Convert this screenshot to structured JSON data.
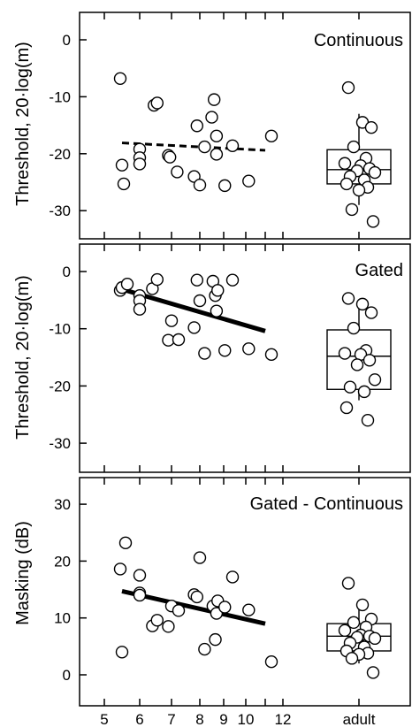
{
  "chart_data": [
    {
      "type": "scatter",
      "title": "Continuous",
      "ylabel": "Threshold, 20·log(m)",
      "ylim": [
        -35,
        5
      ],
      "yticks": [
        0,
        -10,
        -20,
        -30
      ],
      "x_ticks": [
        5,
        6,
        7,
        8,
        9,
        10,
        12
      ],
      "x_ticks_extra": [
        11
      ],
      "x_category": "adult",
      "children": [
        {
          "x": 5.45,
          "y": -6.8
        },
        {
          "x": 5.5,
          "y": -22.0
        },
        {
          "x": 5.55,
          "y": -25.3
        },
        {
          "x": 6.0,
          "y": -19.2
        },
        {
          "x": 6.0,
          "y": -20.7
        },
        {
          "x": 6.0,
          "y": -21.8
        },
        {
          "x": 6.45,
          "y": -11.5
        },
        {
          "x": 6.55,
          "y": -11.1
        },
        {
          "x": 6.9,
          "y": -20.3
        },
        {
          "x": 6.95,
          "y": -20.6
        },
        {
          "x": 7.2,
          "y": -23.2
        },
        {
          "x": 7.8,
          "y": -24.0
        },
        {
          "x": 7.9,
          "y": -15.1
        },
        {
          "x": 8.0,
          "y": -25.5
        },
        {
          "x": 8.2,
          "y": -18.8
        },
        {
          "x": 8.5,
          "y": -13.6
        },
        {
          "x": 8.6,
          "y": -10.5
        },
        {
          "x": 8.7,
          "y": -16.9
        },
        {
          "x": 8.7,
          "y": -20.1
        },
        {
          "x": 9.05,
          "y": -25.6
        },
        {
          "x": 9.4,
          "y": -18.6
        },
        {
          "x": 10.15,
          "y": -24.8
        },
        {
          "x": 11.35,
          "y": -16.9
        }
      ],
      "fit_line": {
        "style": "dashed",
        "from": {
          "x": 5.5,
          "y": -18.1
        },
        "to": {
          "x": 11.0,
          "y": -19.4
        }
      },
      "adult": {
        "points": [
          -8.4,
          -14.5,
          -15.4,
          -18.8,
          -20.8,
          -21.7,
          -22.1,
          -22.6,
          -23.0,
          -23.3,
          -24.0,
          -24.6,
          -25.3,
          -25.9,
          -26.4,
          -29.8,
          -31.9
        ],
        "box": {
          "q1": -25.3,
          "median": -22.8,
          "q3": -19.3,
          "whisker_low": -29.0,
          "whisker_high": -13.0
        }
      }
    },
    {
      "type": "scatter",
      "title": "Gated",
      "ylabel": "Threshold, 20·log(m)",
      "ylim": [
        -35,
        5
      ],
      "yticks": [
        0,
        -10,
        -20,
        -30
      ],
      "x_ticks": [
        5,
        6,
        7,
        8,
        9,
        10,
        12
      ],
      "x_ticks_extra": [
        11
      ],
      "x_category": "adult",
      "children": [
        {
          "x": 5.45,
          "y": -3.3
        },
        {
          "x": 5.5,
          "y": -2.8
        },
        {
          "x": 5.65,
          "y": -2.2
        },
        {
          "x": 6.0,
          "y": -4.2
        },
        {
          "x": 6.0,
          "y": -5.1
        },
        {
          "x": 6.0,
          "y": -6.6
        },
        {
          "x": 6.4,
          "y": -3.0
        },
        {
          "x": 6.55,
          "y": -1.4
        },
        {
          "x": 6.9,
          "y": -12.0
        },
        {
          "x": 7.0,
          "y": -8.6
        },
        {
          "x": 7.25,
          "y": -11.9
        },
        {
          "x": 7.8,
          "y": -9.8
        },
        {
          "x": 7.9,
          "y": -1.5
        },
        {
          "x": 8.0,
          "y": -5.1
        },
        {
          "x": 8.2,
          "y": -14.3
        },
        {
          "x": 8.55,
          "y": -1.7
        },
        {
          "x": 8.65,
          "y": -4.2
        },
        {
          "x": 8.7,
          "y": -6.9
        },
        {
          "x": 8.75,
          "y": -3.3
        },
        {
          "x": 9.05,
          "y": -13.8
        },
        {
          "x": 9.4,
          "y": -1.5
        },
        {
          "x": 10.15,
          "y": -13.5
        },
        {
          "x": 11.35,
          "y": -14.5
        }
      ],
      "fit_line": {
        "style": "solid",
        "from": {
          "x": 5.5,
          "y": -3.1
        },
        "to": {
          "x": 11.0,
          "y": -10.4
        }
      },
      "adult": {
        "points": [
          -4.7,
          -5.7,
          -7.2,
          -9.9,
          -13.8,
          -14.3,
          -14.5,
          -15.5,
          -16.3,
          -18.9,
          -20.2,
          -21.0,
          -23.8,
          -26.0
        ],
        "box": {
          "q1": -20.6,
          "median": -14.8,
          "q3": -10.2,
          "whisker_low": -22.5,
          "whisker_high": -5.0
        }
      }
    },
    {
      "type": "scatter",
      "title": "Gated - Continuous",
      "ylabel": "Masking (dB)",
      "ylim": [
        -5,
        35
      ],
      "yticks": [
        30,
        20,
        10,
        0
      ],
      "x_ticks": [
        5,
        6,
        7,
        8,
        9,
        10,
        12
      ],
      "x_ticks_extra": [
        11
      ],
      "x_category": "adult",
      "children": [
        {
          "x": 5.45,
          "y": 18.6
        },
        {
          "x": 5.5,
          "y": 4.0
        },
        {
          "x": 5.6,
          "y": 23.2
        },
        {
          "x": 6.0,
          "y": 17.5
        },
        {
          "x": 6.0,
          "y": 14.4
        },
        {
          "x": 6.0,
          "y": 14.0
        },
        {
          "x": 6.4,
          "y": 8.6
        },
        {
          "x": 6.55,
          "y": 9.6
        },
        {
          "x": 6.9,
          "y": 8.5
        },
        {
          "x": 7.0,
          "y": 12.1
        },
        {
          "x": 7.25,
          "y": 11.3
        },
        {
          "x": 7.8,
          "y": 14.1
        },
        {
          "x": 7.9,
          "y": 13.7
        },
        {
          "x": 8.0,
          "y": 20.6
        },
        {
          "x": 8.2,
          "y": 4.5
        },
        {
          "x": 8.55,
          "y": 12.1
        },
        {
          "x": 8.65,
          "y": 6.2
        },
        {
          "x": 8.7,
          "y": 10.8
        },
        {
          "x": 8.75,
          "y": 13.0
        },
        {
          "x": 9.05,
          "y": 11.9
        },
        {
          "x": 9.4,
          "y": 17.2
        },
        {
          "x": 10.15,
          "y": 11.4
        },
        {
          "x": 11.35,
          "y": 2.3
        }
      ],
      "fit_line": {
        "style": "solid",
        "from": {
          "x": 5.5,
          "y": 14.7
        },
        "to": {
          "x": 11.0,
          "y": 9.0
        }
      },
      "adult": {
        "points": [
          16.1,
          12.3,
          9.8,
          9.2,
          8.4,
          7.8,
          7.0,
          6.8,
          6.6,
          6.4,
          5.6,
          4.9,
          4.2,
          3.8,
          3.6,
          2.9,
          0.4
        ],
        "box": {
          "q1": 4.2,
          "median": 6.8,
          "q3": 9.0,
          "whisker_low": 2.0,
          "whisker_high": 13.0
        }
      }
    }
  ]
}
